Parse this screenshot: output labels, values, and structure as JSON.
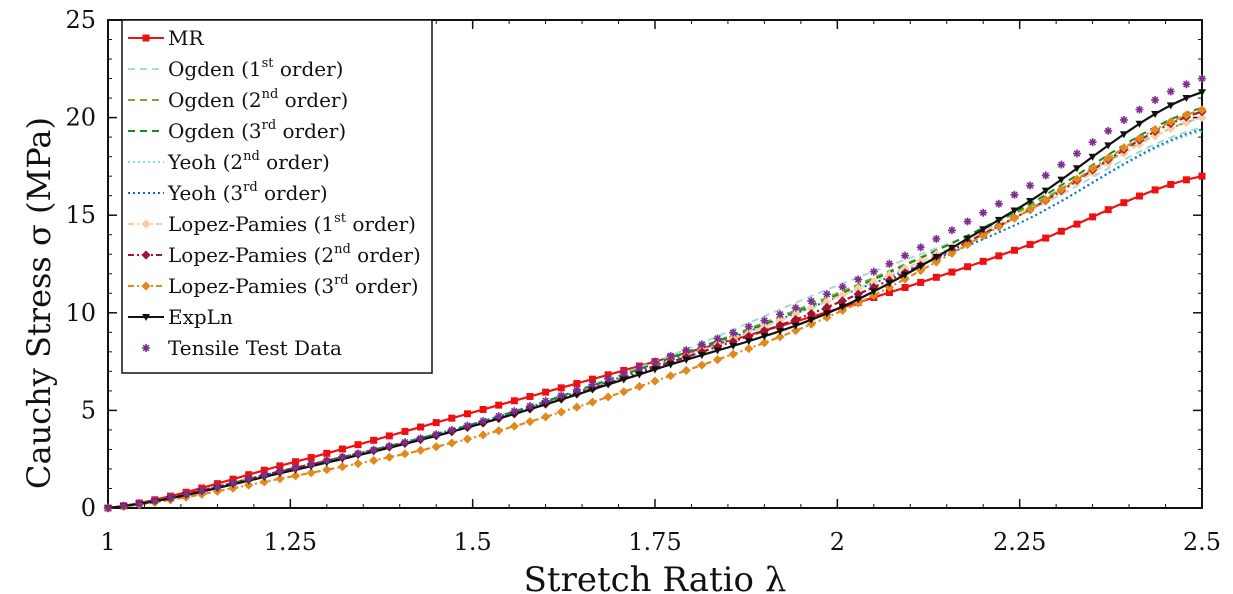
{
  "chart_data": {
    "type": "line",
    "xlabel": "Stretch Ratio λ",
    "ylabel": "Cauchy Stress σ (MPa)",
    "xlim": [
      1,
      2.5
    ],
    "ylim": [
      0,
      25
    ],
    "x_ticks": [
      1,
      1.25,
      1.5,
      1.75,
      2,
      2.25,
      2.5
    ],
    "x_tick_labels": [
      "1",
      "1.25",
      "1.5",
      "1.75",
      "2",
      "2.25",
      "2.5"
    ],
    "y_ticks": [
      0,
      5,
      10,
      15,
      20,
      25
    ],
    "y_tick_labels": [
      "0",
      "5",
      "10",
      "15",
      "20",
      "25"
    ],
    "grid": false,
    "legend_position": "top-left",
    "x": [
      1,
      1.25,
      1.5,
      1.75,
      2,
      2.25,
      2.5
    ],
    "series": [
      {
        "name": "MR",
        "label": "MR",
        "sup": "",
        "suffix": "",
        "color": "#ee1111",
        "dash": "",
        "marker": "square",
        "values": [
          0,
          2.3,
          4.9,
          7.5,
          10.2,
          13.3,
          17
        ]
      },
      {
        "name": "Ogden (1st order)",
        "label": "Ogden (1",
        "sup": "st",
        "suffix": " order)",
        "color": "#a8d8dc",
        "dash": "7,5",
        "marker": "none",
        "values": [
          0,
          2.0,
          4.3,
          7.5,
          11.4,
          15.0,
          19.5
        ]
      },
      {
        "name": "Ogden (2nd order)",
        "label": "Ogden (2",
        "sup": "nd",
        "suffix": " order)",
        "color": "#77ac30",
        "dash": "7,5",
        "marker": "none",
        "values": [
          0,
          2.0,
          4.3,
          7.4,
          11.0,
          15.2,
          20.0
        ]
      },
      {
        "name": "Ogden (3rd order)",
        "label": "Ogden (3",
        "sup": "rd",
        "suffix": " order)",
        "color": "#1a8a1a",
        "dash": "7,5",
        "marker": "none",
        "values": [
          0,
          2.0,
          4.3,
          7.4,
          10.9,
          15.3,
          20.5
        ]
      },
      {
        "name": "Yeoh (2nd order)",
        "label": "Yeoh (2",
        "sup": "nd",
        "suffix": " order)",
        "color": "#80dce8",
        "dash": "2,3",
        "marker": "none",
        "values": [
          0,
          2.0,
          4.3,
          7.3,
          10.8,
          14.6,
          19.3
        ]
      },
      {
        "name": "Yeoh (3rd order)",
        "label": "Yeoh (3",
        "sup": "rd",
        "suffix": " order)",
        "color": "#0072bd",
        "dash": "2,3",
        "marker": "none",
        "values": [
          0,
          2.0,
          4.3,
          7.3,
          10.8,
          14.6,
          19.4
        ]
      },
      {
        "name": "Lopez-Pamies (1st order)",
        "label": "Lopez-Pamies (1",
        "sup": "st",
        "suffix": " order)",
        "color": "#f5cfa8",
        "dash": "6,3,2,3",
        "marker": "diamond",
        "values": [
          0,
          2.0,
          4.2,
          7.2,
          10.8,
          15.0,
          20.0
        ]
      },
      {
        "name": "Lopez-Pamies (2nd order)",
        "label": "Lopez-Pamies (2",
        "sup": "nd",
        "suffix": " order)",
        "color": "#a2142f",
        "dash": "6,3,2,3",
        "marker": "diamond",
        "values": [
          0,
          2.0,
          4.2,
          7.2,
          10.5,
          15.0,
          20.3
        ]
      },
      {
        "name": "Lopez-Pamies (3rd order)",
        "label": "Lopez-Pamies (3",
        "sup": "rd",
        "suffix": " order)",
        "color": "#e08a1e",
        "dash": "6,3,2,3",
        "marker": "diamond",
        "values": [
          0,
          1.6,
          3.6,
          6.5,
          10.0,
          15.0,
          20.4
        ]
      },
      {
        "name": "ExpLn",
        "label": "ExpLn",
        "sup": "",
        "suffix": "",
        "color": "#111111",
        "dash": "",
        "marker": "triangle",
        "values": [
          0,
          1.9,
          4.2,
          7.1,
          10.2,
          15.4,
          21.3
        ]
      },
      {
        "name": "Tensile Test Data",
        "label": "Tensile Test Data",
        "sup": "",
        "suffix": "",
        "color": "#7e2f8e",
        "dash": "",
        "marker": "star",
        "linestyle": "none",
        "values": [
          0,
          2.0,
          4.3,
          7.5,
          11.2,
          16.2,
          22.0
        ]
      }
    ]
  }
}
